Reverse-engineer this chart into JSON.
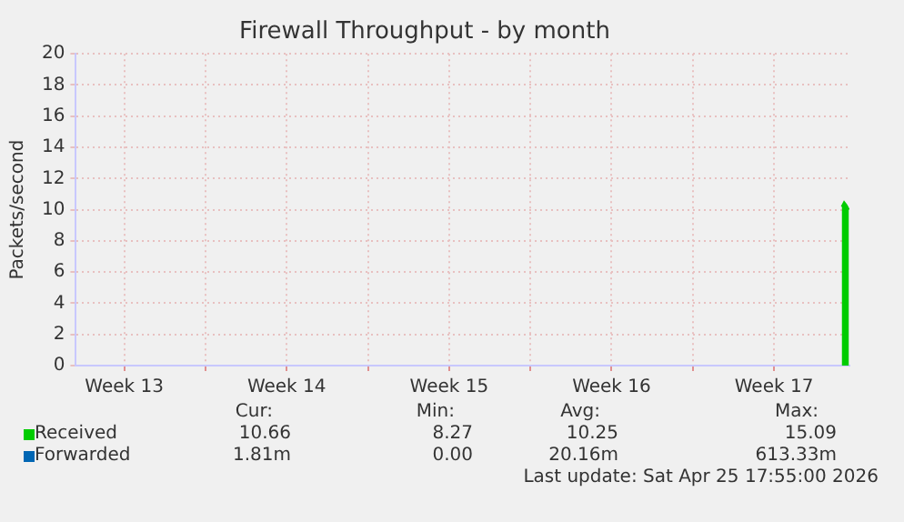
{
  "chart_data": {
    "type": "area",
    "title": "Firewall Throughput - by month",
    "ylabel": "Packets/second",
    "xlim": [
      "2026-03-23T10:00",
      "2026-04-25T18:00"
    ],
    "xticks": [
      {
        "value": "2026-03-25T12:00",
        "label": "Week 13"
      },
      {
        "value": "2026-03-29",
        "label": null
      },
      {
        "value": "2026-04-01T12:00",
        "label": "Week 14"
      },
      {
        "value": "2026-04-05",
        "label": null
      },
      {
        "value": "2026-04-08T12:00",
        "label": "Week 15"
      },
      {
        "value": "2026-04-12",
        "label": null
      },
      {
        "value": "2026-04-15T12:00",
        "label": "Week 16"
      },
      {
        "value": "2026-04-19",
        "label": null
      },
      {
        "value": "2026-04-22T12:00",
        "label": "Week 17"
      }
    ],
    "ylim": [
      0,
      20
    ],
    "yticks": [
      0,
      2,
      4,
      6,
      8,
      10,
      12,
      14,
      16,
      18,
      20
    ],
    "x": [
      "2026-04-25T10:00",
      "2026-04-25T12:30",
      "2026-04-25T15:00",
      "2026-04-25T17:30"
    ],
    "series": [
      {
        "name": "Received",
        "color": "#00cc00",
        "values": [
          10.2,
          10.5,
          10.3,
          10.0
        ]
      },
      {
        "name": "Forwarded",
        "color": "#0066b3",
        "values": [
          null,
          null,
          null,
          null
        ]
      }
    ],
    "grid": true,
    "legend": "bottom",
    "annotations": [
      "Cur:",
      "Min:",
      "Avg:",
      "Max:",
      "10.66",
      "8.27",
      "10.25",
      "15.09",
      "1.81m",
      "0.00",
      "20.16m",
      "613.33m",
      "Last update: Sat Apr 25 17:55:00 2026"
    ]
  }
}
